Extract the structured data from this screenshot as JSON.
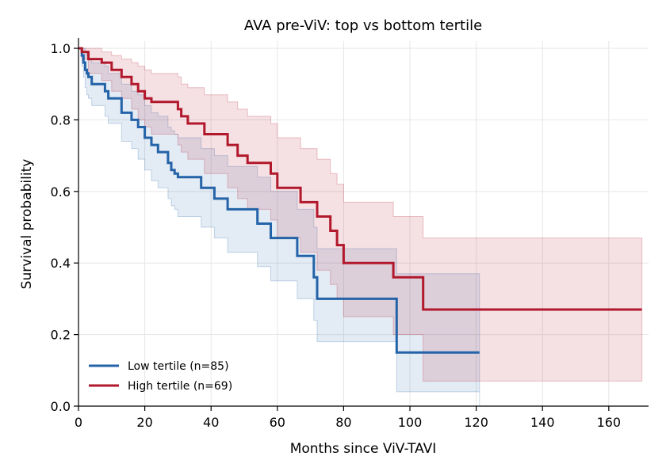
{
  "chart_data": {
    "type": "line",
    "title": "AVA pre-ViV: top vs bottom tertile",
    "xlabel": "Months since ViV-TAVI",
    "ylabel": "Survival probability",
    "xlim": [
      0,
      172
    ],
    "ylim": [
      0,
      1.02
    ],
    "xticks": [
      0,
      20,
      40,
      60,
      80,
      100,
      120,
      140,
      160
    ],
    "yticks": [
      0.0,
      0.2,
      0.4,
      0.6,
      0.8,
      1.0
    ],
    "xtick_labels": [
      "0",
      "20",
      "40",
      "60",
      "80",
      "100",
      "120",
      "140",
      "160"
    ],
    "ytick_labels": [
      "0.0",
      "0.2",
      "0.4",
      "0.6",
      "0.8",
      "1.0"
    ],
    "grid": true,
    "legend_position": "bottom-left",
    "curve_style": "step-post",
    "series": [
      {
        "name": "Low tertile (n=85)",
        "color": "#2463a8",
        "x": [
          0,
          1,
          1.5,
          2,
          2.5,
          3,
          4,
          8,
          9,
          13,
          16,
          18,
          20,
          22,
          24,
          27,
          28,
          29,
          30,
          37,
          41,
          45,
          54,
          58,
          66,
          71,
          72,
          96,
          121
        ],
        "y": [
          1.0,
          0.98,
          0.96,
          0.94,
          0.93,
          0.92,
          0.9,
          0.88,
          0.86,
          0.82,
          0.8,
          0.78,
          0.75,
          0.73,
          0.71,
          0.68,
          0.66,
          0.65,
          0.64,
          0.61,
          0.58,
          0.55,
          0.51,
          0.47,
          0.42,
          0.36,
          0.3,
          0.15,
          0.15
        ],
        "ci_lower": [
          1.0,
          0.95,
          0.92,
          0.89,
          0.87,
          0.86,
          0.84,
          0.81,
          0.79,
          0.74,
          0.72,
          0.69,
          0.66,
          0.63,
          0.61,
          0.58,
          0.56,
          0.55,
          0.53,
          0.5,
          0.47,
          0.43,
          0.39,
          0.35,
          0.3,
          0.24,
          0.18,
          0.04,
          0.0
        ],
        "ci_upper": [
          1.0,
          1.0,
          1.0,
          0.99,
          0.98,
          0.97,
          0.96,
          0.95,
          0.93,
          0.9,
          0.88,
          0.87,
          0.84,
          0.82,
          0.81,
          0.78,
          0.77,
          0.76,
          0.75,
          0.72,
          0.7,
          0.67,
          0.64,
          0.6,
          0.55,
          0.5,
          0.44,
          0.37,
          0.37
        ]
      },
      {
        "name": "High tertile (n=69)",
        "color": "#b2182b",
        "x": [
          0,
          1,
          3,
          7,
          10,
          13,
          16,
          18,
          20,
          22,
          30,
          31,
          33,
          38,
          45,
          48,
          51,
          58,
          60,
          67,
          72,
          76,
          78,
          80,
          95,
          104,
          170
        ],
        "y": [
          1.0,
          0.99,
          0.97,
          0.96,
          0.94,
          0.92,
          0.9,
          0.88,
          0.86,
          0.85,
          0.83,
          0.81,
          0.79,
          0.76,
          0.73,
          0.7,
          0.68,
          0.65,
          0.61,
          0.57,
          0.53,
          0.49,
          0.45,
          0.4,
          0.36,
          0.27,
          0.27
        ],
        "ci_lower": [
          1.0,
          0.97,
          0.93,
          0.91,
          0.88,
          0.86,
          0.83,
          0.8,
          0.78,
          0.76,
          0.73,
          0.71,
          0.69,
          0.65,
          0.61,
          0.58,
          0.55,
          0.52,
          0.47,
          0.43,
          0.38,
          0.34,
          0.3,
          0.25,
          0.2,
          0.07,
          0.07
        ],
        "ci_upper": [
          1.0,
          1.0,
          1.0,
          0.99,
          0.98,
          0.97,
          0.96,
          0.95,
          0.94,
          0.93,
          0.92,
          0.9,
          0.89,
          0.87,
          0.85,
          0.83,
          0.81,
          0.79,
          0.75,
          0.72,
          0.69,
          0.65,
          0.62,
          0.57,
          0.53,
          0.47,
          0.47
        ]
      }
    ]
  }
}
